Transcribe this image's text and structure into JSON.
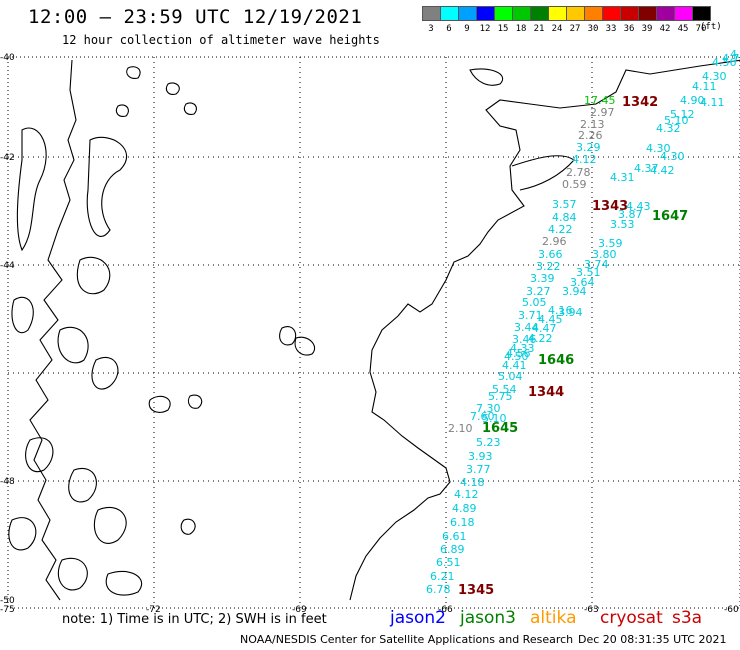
{
  "header": {
    "title": "12:00 – 23:59 UTC 12/19/2021",
    "subtitle": "12 hour collection of altimeter wave heights"
  },
  "color_scale": {
    "unit": "(ft)",
    "steps": [
      {
        "label": "3",
        "color": "#808080"
      },
      {
        "label": "6",
        "color": "#00ffff"
      },
      {
        "label": "9",
        "color": "#00a0ff"
      },
      {
        "label": "12",
        "color": "#0000ff"
      },
      {
        "label": "15",
        "color": "#00ff00"
      },
      {
        "label": "18",
        "color": "#00c800"
      },
      {
        "label": "21",
        "color": "#008000"
      },
      {
        "label": "24",
        "color": "#ffff00"
      },
      {
        "label": "27",
        "color": "#ffc800"
      },
      {
        "label": "30",
        "color": "#ff8000"
      },
      {
        "label": "33",
        "color": "#ff0000"
      },
      {
        "label": "36",
        "color": "#c80000"
      },
      {
        "label": "39",
        "color": "#800000"
      },
      {
        "label": "42",
        "color": "#a000a0"
      },
      {
        "label": "45",
        "color": "#ff00ff"
      },
      {
        "label": "70",
        "color": "#000000"
      }
    ]
  },
  "map": {
    "lat_labels": [
      "-40",
      "-42",
      "-44",
      "-48",
      "-50"
    ],
    "lon_labels": [
      "-75",
      "-72",
      "-69",
      "-66",
      "-63",
      "-60"
    ],
    "pass_labels": [
      {
        "text": "1342",
        "color": "#800000"
      },
      {
        "text": "1343",
        "color": "#800000"
      },
      {
        "text": "1647",
        "color": "#008000"
      },
      {
        "text": "1646",
        "color": "#008000"
      },
      {
        "text": "1344",
        "color": "#800000"
      },
      {
        "text": "1645",
        "color": "#008000"
      },
      {
        "text": "1345",
        "color": "#800000"
      }
    ],
    "obs": [
      {
        "v": "17.45",
        "c": "#00c800"
      },
      {
        "v": "2.97",
        "c": "#808080"
      },
      {
        "v": "2.13",
        "c": "#808080"
      },
      {
        "v": "2.26",
        "c": "#808080"
      },
      {
        "v": "3.29",
        "c": "#00ccdd"
      },
      {
        "v": "4.12",
        "c": "#00ccdd"
      },
      {
        "v": "2.78",
        "c": "#808080"
      },
      {
        "v": "0.59",
        "c": "#808080"
      },
      {
        "v": "3.57",
        "c": "#00ccdd"
      },
      {
        "v": "4.84",
        "c": "#00ccdd"
      },
      {
        "v": "4.22",
        "c": "#00ccdd"
      },
      {
        "v": "2.96",
        "c": "#808080"
      },
      {
        "v": "3.66",
        "c": "#00ccdd"
      },
      {
        "v": "3.22",
        "c": "#00ccdd"
      },
      {
        "v": "3.39",
        "c": "#00ccdd"
      },
      {
        "v": "3.27",
        "c": "#00ccdd"
      },
      {
        "v": "5.05",
        "c": "#00ccdd"
      },
      {
        "v": "3.71",
        "c": "#00ccdd"
      },
      {
        "v": "3.44",
        "c": "#00ccdd"
      },
      {
        "v": "3.46",
        "c": "#00ccdd"
      },
      {
        "v": "4.56",
        "c": "#00ccdd"
      },
      {
        "v": "4.41",
        "c": "#00ccdd"
      },
      {
        "v": "5.04",
        "c": "#00ccdd"
      },
      {
        "v": "5.54",
        "c": "#00ccdd"
      },
      {
        "v": "5.75",
        "c": "#00ccdd"
      },
      {
        "v": "7.30",
        "c": "#00ccdd"
      },
      {
        "v": "7.60",
        "c": "#00ccdd"
      },
      {
        "v": "2.10",
        "c": "#808080"
      },
      {
        "v": "5.10",
        "c": "#00ccdd"
      },
      {
        "v": "5.23",
        "c": "#00ccdd"
      },
      {
        "v": "3.93",
        "c": "#00ccdd"
      },
      {
        "v": "3.77",
        "c": "#00ccdd"
      },
      {
        "v": "4.18",
        "c": "#00ccdd"
      },
      {
        "v": "4.12",
        "c": "#00ccdd"
      },
      {
        "v": "4.89",
        "c": "#00ccdd"
      },
      {
        "v": "6.18",
        "c": "#00ccdd"
      },
      {
        "v": "6.61",
        "c": "#00ccdd"
      },
      {
        "v": "6.89",
        "c": "#00ccdd"
      },
      {
        "v": "6.51",
        "c": "#00ccdd"
      },
      {
        "v": "6.21",
        "c": "#00ccdd"
      },
      {
        "v": "6.78",
        "c": "#00ccdd"
      },
      {
        "v": "4.11",
        "c": "#00ccdd"
      },
      {
        "v": "4.30",
        "c": "#00ccdd"
      },
      {
        "v": "4.37",
        "c": "#00ccdd"
      },
      {
        "v": "4.43",
        "c": "#00ccdd"
      },
      {
        "v": "3.87",
        "c": "#00ccdd"
      },
      {
        "v": "3.53",
        "c": "#00ccdd"
      },
      {
        "v": "3.59",
        "c": "#00ccdd"
      },
      {
        "v": "3.80",
        "c": "#00ccdd"
      },
      {
        "v": "3.74",
        "c": "#00ccdd"
      },
      {
        "v": "3.51",
        "c": "#00ccdd"
      },
      {
        "v": "3.64",
        "c": "#00ccdd"
      },
      {
        "v": "3.94",
        "c": "#00ccdd"
      },
      {
        "v": "3.94",
        "c": "#00ccdd"
      },
      {
        "v": "4.16",
        "c": "#00ccdd"
      },
      {
        "v": "4.45",
        "c": "#00ccdd"
      },
      {
        "v": "4.47",
        "c": "#00ccdd"
      },
      {
        "v": "4.22",
        "c": "#00ccdd"
      },
      {
        "v": "4.33",
        "c": "#00ccdd"
      },
      {
        "v": "4.50",
        "c": "#00ccdd"
      },
      {
        "v": "4.31",
        "c": "#00ccdd"
      },
      {
        "v": "4.42",
        "c": "#00ccdd"
      },
      {
        "v": "4.30",
        "c": "#00ccdd"
      },
      {
        "v": "4.32",
        "c": "#00ccdd"
      },
      {
        "v": "5.10",
        "c": "#00ccdd"
      },
      {
        "v": "5.12",
        "c": "#00ccdd"
      },
      {
        "v": "4.90",
        "c": "#00ccdd"
      },
      {
        "v": "4.11",
        "c": "#00ccdd"
      },
      {
        "v": "4.30",
        "c": "#00ccdd"
      },
      {
        "v": "4.56",
        "c": "#00ccdd"
      },
      {
        "v": "4.75",
        "c": "#00ccdd"
      },
      {
        "v": "4.71",
        "c": "#00ccdd"
      },
      {
        "v": "4.57",
        "c": "#00ccdd"
      }
    ]
  },
  "footer": {
    "note": "note:  1) Time is in UTC;  2) SWH is in feet",
    "satellites": [
      {
        "name": "jason2",
        "color": "#0000ff"
      },
      {
        "name": "jason3",
        "color": "#008000"
      },
      {
        "name": "altika",
        "color": "#ff9900"
      },
      {
        "name": "cryosat",
        "color": "#cc0000"
      },
      {
        "name": "s3a",
        "color": "#cc0000"
      }
    ],
    "credit": "NOAA/NESDIS Center for Satellite Applications and Research",
    "timestamp": "Dec 20 08:31:35 UTC 2021"
  }
}
